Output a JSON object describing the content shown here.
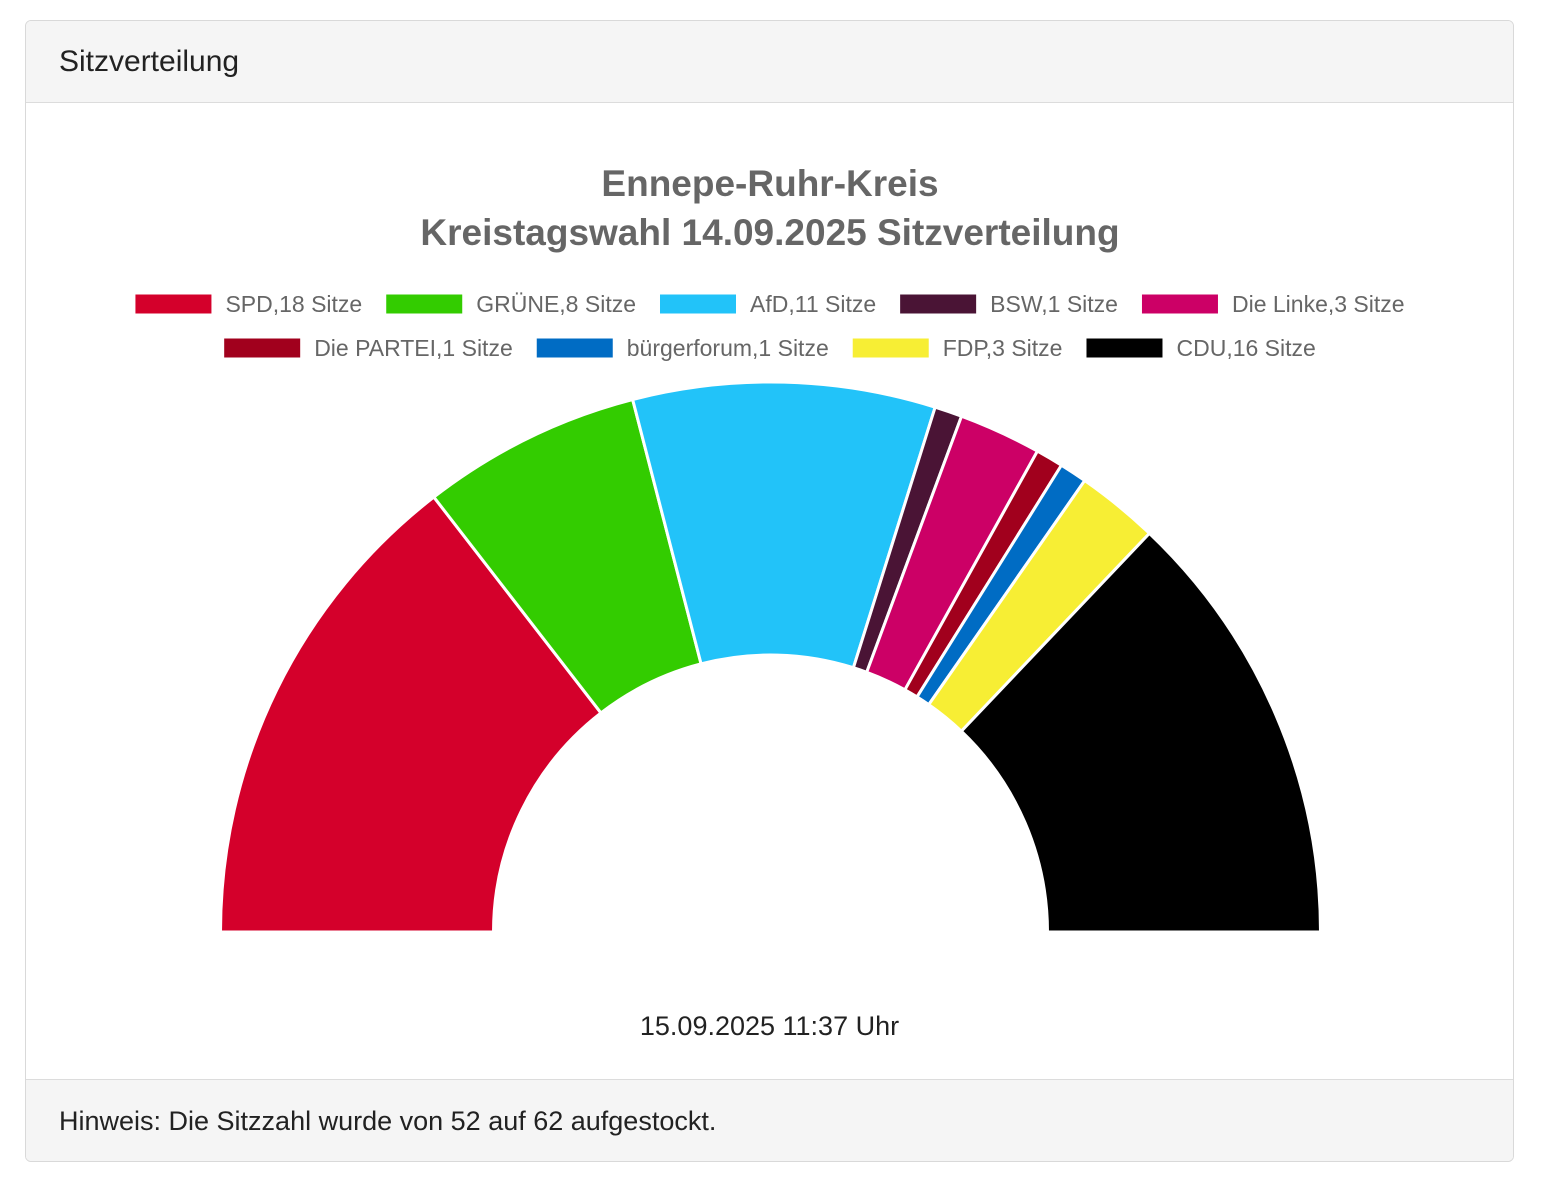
{
  "card": {
    "header_title": "Sitzverteilung",
    "footer_note": "Hinweis: Die Sitzzahl wurde von 52 auf 62 aufgestockt.",
    "timestamp": "15.09.2025 11:37 Uhr"
  },
  "chart_data": {
    "type": "pie",
    "subtype": "semicircle-donut",
    "title": "Ennepe-Ruhr-Kreis",
    "subtitle": "Kreistagswahl 14.09.2025 Sitzverteilung",
    "legend_position": "top",
    "series": [
      {
        "name": "SPD",
        "value": 18,
        "label": "SPD,18 Sitze",
        "color": "#D4002B"
      },
      {
        "name": "GRÜNE",
        "value": 8,
        "label": "GRÜNE,8 Sitze",
        "color": "#33CC00"
      },
      {
        "name": "AfD",
        "value": 11,
        "label": "AfD,11 Sitze",
        "color": "#22C3F9"
      },
      {
        "name": "BSW",
        "value": 1,
        "label": "BSW,1 Sitze",
        "color": "#4A1435"
      },
      {
        "name": "Die Linke",
        "value": 3,
        "label": "Die Linke,3 Sitze",
        "color": "#CC0066"
      },
      {
        "name": "Die PARTEI",
        "value": 1,
        "label": "Die PARTEI,1 Sitze",
        "color": "#A1001D"
      },
      {
        "name": "bürgerforum",
        "value": 1,
        "label": "bürgerforum,1 Sitze",
        "color": "#006CC4"
      },
      {
        "name": "FDP",
        "value": 3,
        "label": "FDP,3 Sitze",
        "color": "#F7EE34"
      },
      {
        "name": "CDU",
        "value": 16,
        "label": "CDU,16 Sitze",
        "color": "#000000"
      }
    ]
  }
}
